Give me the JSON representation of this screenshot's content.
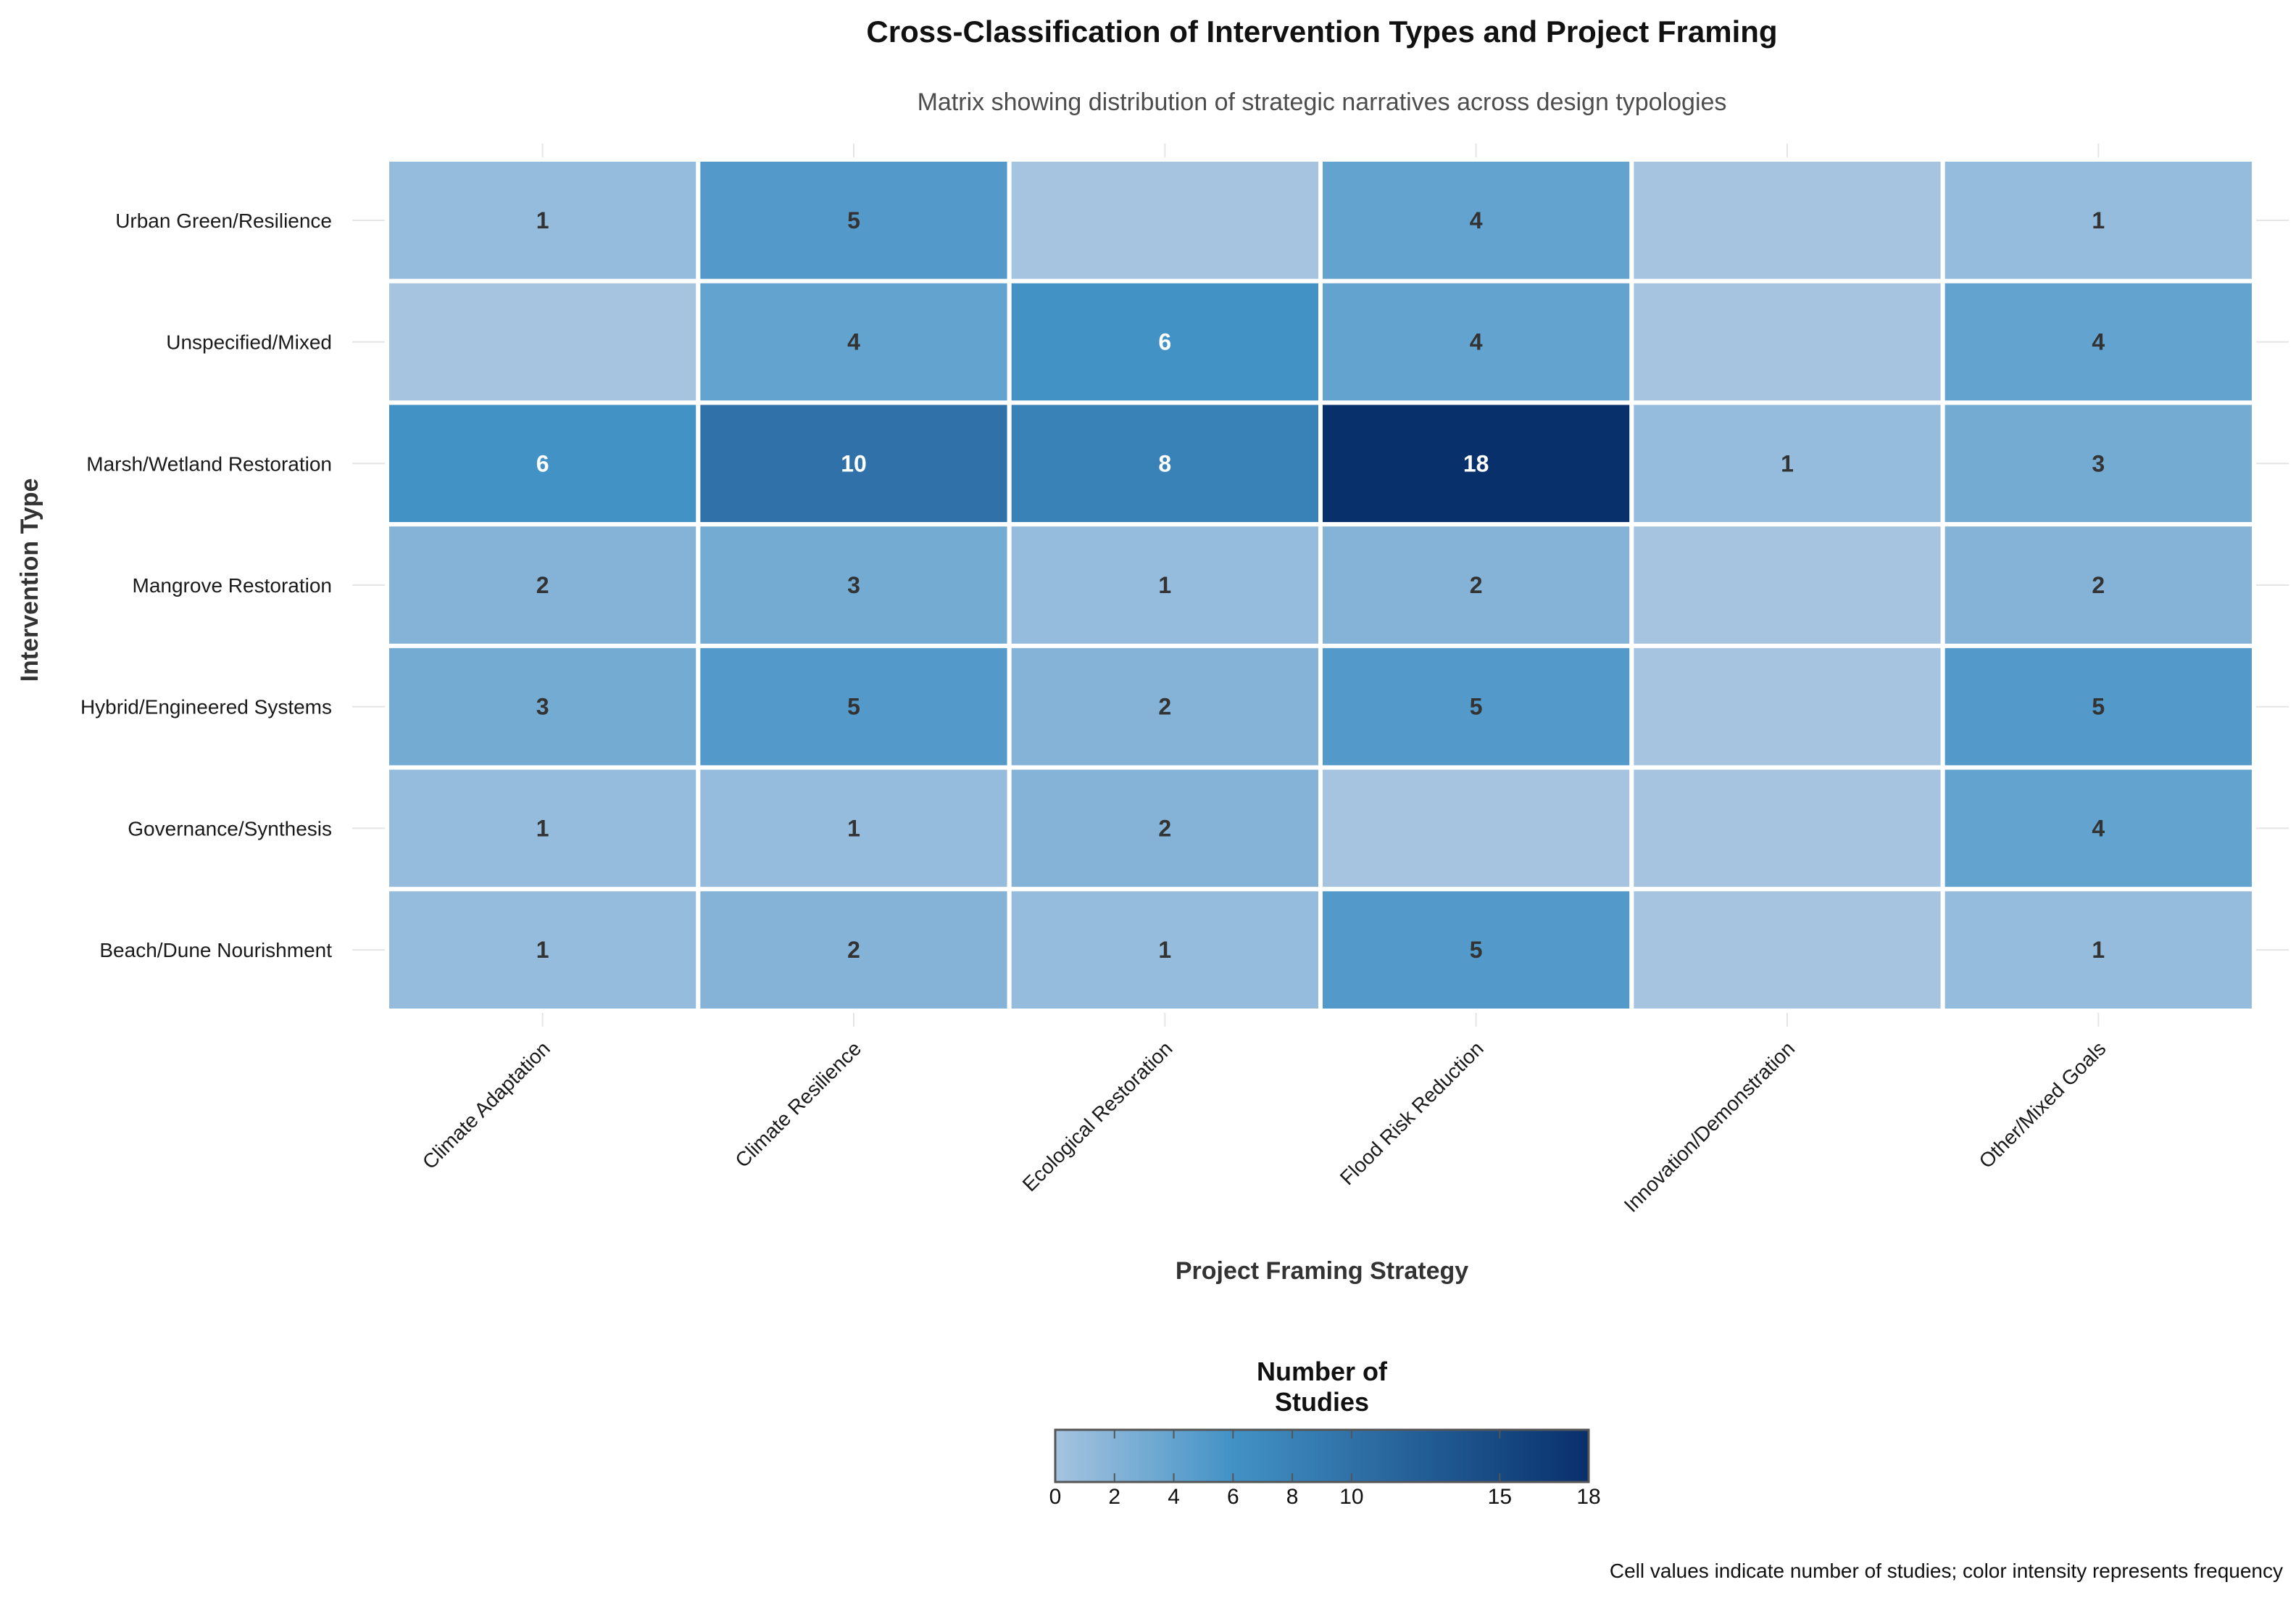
{
  "chart_data": {
    "type": "heatmap",
    "title": "Cross-Classification of Intervention Types and Project Framing",
    "subtitle": "Matrix showing distribution of strategic narratives across design typologies",
    "xlabel": "Project Framing Strategy",
    "ylabel": "Intervention Type",
    "x_categories": [
      "Climate Adaptation",
      "Climate Resilience",
      "Ecological Restoration",
      "Flood Risk Reduction",
      "Innovation/Demonstration",
      "Other/Mixed Goals"
    ],
    "y_categories": [
      "Urban Green/Resilience",
      "Unspecified/Mixed",
      "Marsh/Wetland Restoration",
      "Mangrove Restoration",
      "Hybrid/Engineered Systems",
      "Governance/Synthesis",
      "Beach/Dune Nourishment"
    ],
    "values": [
      [
        1,
        5,
        null,
        4,
        null,
        1
      ],
      [
        null,
        4,
        6,
        4,
        null,
        4
      ],
      [
        6,
        10,
        8,
        18,
        1,
        3
      ],
      [
        2,
        3,
        1,
        2,
        null,
        2
      ],
      [
        3,
        5,
        2,
        5,
        null,
        5
      ],
      [
        1,
        1,
        2,
        null,
        null,
        4
      ],
      [
        1,
        2,
        1,
        5,
        null,
        1
      ]
    ],
    "color_scale": {
      "min": 0,
      "max": 18,
      "low_color": "#a6c4e0",
      "mid_color": "#4292c6",
      "high_color": "#08306b",
      "empty_color": "#a6c4e0"
    },
    "legend": {
      "title_line1": "Number of",
      "title_line2": "Studies",
      "ticks": [
        0,
        2,
        4,
        6,
        8,
        10,
        15,
        18
      ],
      "placement": "bottom-center"
    },
    "caption": "Cell values indicate number of studies; color intensity represents frequency"
  }
}
